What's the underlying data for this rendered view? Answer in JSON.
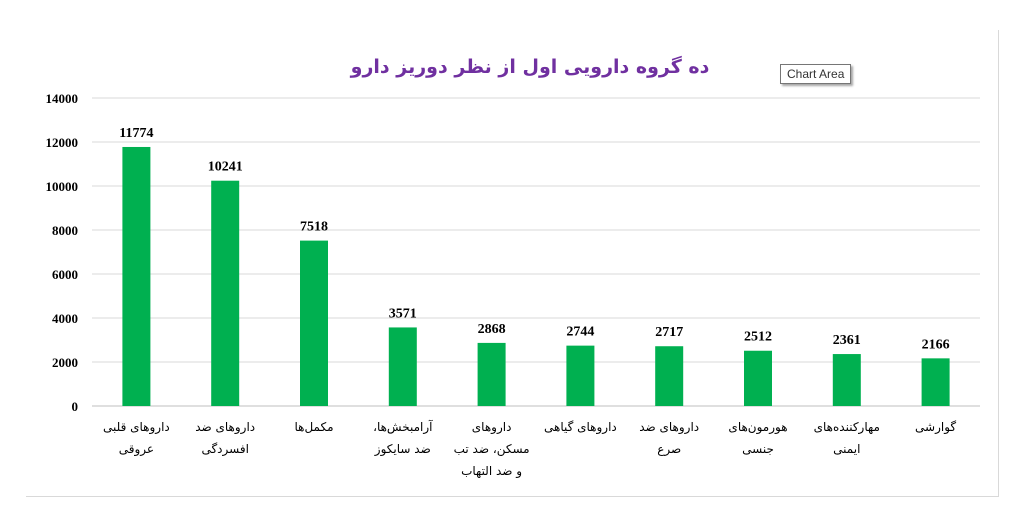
{
  "tooltip": "Chart Area",
  "chart_data": {
    "type": "bar",
    "title": "ده گروه دارویی اول از نظر دوریز دارو",
    "categories": [
      [
        "داروهای قلبی",
        "عروقی"
      ],
      [
        "داروهای ضد",
        "افسردگی"
      ],
      [
        "مکمل‌ها"
      ],
      [
        "آرامبخش‌ها،",
        "ضد سایکوز"
      ],
      [
        "داروهای",
        "مسکن، ضد تب",
        "و ضد التهاب"
      ],
      [
        "داروهای گیاهی"
      ],
      [
        "داروهای ضد",
        "صرع"
      ],
      [
        "هورمون‌های",
        "جنسی"
      ],
      [
        "مهارکننده‌های",
        "ایمنی"
      ],
      [
        "گوارشی"
      ]
    ],
    "values": [
      11774,
      10241,
      7518,
      3571,
      2868,
      2744,
      2717,
      2512,
      2361,
      2166
    ],
    "ylim": [
      0,
      14000
    ],
    "yticks": [
      0,
      2000,
      4000,
      6000,
      8000,
      10000,
      12000,
      14000
    ],
    "grid": true,
    "bar_color": "#00b050",
    "title_color": "#7030a0"
  }
}
